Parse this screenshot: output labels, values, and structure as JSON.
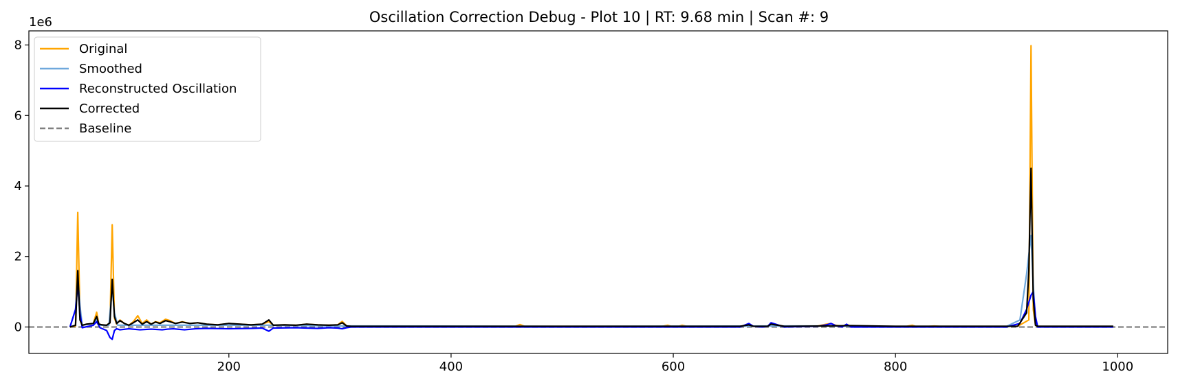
{
  "chart_data": {
    "type": "line",
    "title": "Oscillation Correction Debug - Plot 10 | RT: 9.68 min | Scan #: 9",
    "xlabel": "",
    "ylabel": "",
    "y_scale_label": "1e6",
    "xlim": [
      20,
      1045
    ],
    "ylim": [
      -0.75,
      8.4
    ],
    "x_ticks": [
      {
        "value": 200,
        "label": "200"
      },
      {
        "value": 400,
        "label": "400"
      },
      {
        "value": 600,
        "label": "600"
      },
      {
        "value": 800,
        "label": "800"
      },
      {
        "value": 1000,
        "label": "1000"
      }
    ],
    "y_ticks": [
      {
        "value": 0,
        "label": "0"
      },
      {
        "value": 2,
        "label": "2"
      },
      {
        "value": 4,
        "label": "4"
      },
      {
        "value": 6,
        "label": "6"
      },
      {
        "value": 8,
        "label": "8"
      }
    ],
    "grid": false,
    "legend_position": "top-left",
    "series": [
      {
        "name": "Original",
        "color": "#FFA500",
        "style": "solid",
        "x": [
          57,
          62,
          64,
          66,
          68,
          72,
          78,
          81,
          83,
          86,
          90,
          93,
          95,
          97,
          99,
          102,
          106,
          110,
          114,
          118,
          122,
          126,
          130,
          134,
          138,
          143,
          147,
          152,
          158,
          165,
          172,
          180,
          190,
          200,
          210,
          220,
          230,
          236,
          240,
          250,
          260,
          270,
          280,
          290,
          298,
          302,
          306,
          310,
          330,
          360,
          400,
          440,
          458,
          462,
          466,
          500,
          540,
          560,
          590,
          595,
          598,
          605,
          608,
          612,
          630,
          660,
          668,
          672,
          680,
          685,
          688,
          700,
          730,
          738,
          742,
          746,
          752,
          756,
          760,
          780,
          810,
          815,
          818,
          822,
          830,
          835,
          840,
          870,
          900,
          910,
          920,
          922,
          924,
          926,
          928,
          932,
          950,
          980,
          996
        ],
        "y": [
          0,
          0.03,
          3.25,
          0.3,
          0.05,
          0.08,
          0.1,
          0.42,
          0.08,
          0.06,
          0.05,
          0.12,
          2.9,
          0.25,
          0.08,
          0.2,
          0.1,
          0.05,
          0.15,
          0.32,
          0.1,
          0.2,
          0.08,
          0.15,
          0.12,
          0.22,
          0.18,
          0.1,
          0.15,
          0.1,
          0.12,
          0.08,
          0.06,
          0.1,
          0.08,
          0.06,
          0.08,
          0.15,
          0.05,
          0.06,
          0.05,
          0.08,
          0.06,
          0.05,
          0.06,
          0.16,
          0.03,
          0.02,
          0.02,
          0.02,
          0.02,
          0.02,
          0.02,
          0.07,
          0.02,
          0.02,
          0.02,
          0.02,
          0.02,
          0.05,
          0.02,
          0.02,
          0.05,
          0.02,
          0.02,
          0.02,
          0.05,
          0.02,
          0.02,
          0.03,
          0.08,
          0.02,
          0.03,
          0.08,
          0.1,
          0.05,
          0.02,
          0.07,
          0.02,
          0.02,
          0.02,
          0.05,
          0.02,
          0.02,
          0.02,
          0.03,
          0.02,
          0.02,
          0.02,
          0.02,
          0.2,
          7.98,
          0.5,
          0.05,
          0.02,
          0.02,
          0.02,
          0.02,
          0.02
        ]
      },
      {
        "name": "Smoothed",
        "color": "#6FA8DC",
        "style": "solid",
        "x": [
          57,
          62,
          64,
          66,
          68,
          78,
          81,
          84,
          92,
          95,
          97,
          100,
          150,
          236,
          300,
          500,
          740,
          760,
          900,
          912,
          918,
          922,
          924,
          926,
          928,
          930,
          932,
          960,
          996
        ],
        "y": [
          0,
          0.5,
          1.4,
          0.6,
          0.05,
          0.1,
          0.22,
          0.05,
          0.05,
          1.1,
          0.4,
          0.05,
          0.05,
          0.05,
          0.03,
          0.02,
          0.03,
          0.02,
          0.02,
          0.2,
          1.5,
          2.6,
          1.2,
          0.2,
          0.02,
          0.02,
          0.02,
          0.02,
          0.02
        ]
      },
      {
        "name": "Reconstructed Oscillation",
        "color": "#0000FF",
        "style": "solid",
        "x": [
          57,
          62,
          64,
          66,
          68,
          78,
          81,
          84,
          90,
          93,
          95,
          97,
          99,
          102,
          110,
          120,
          130,
          140,
          145,
          150,
          160,
          170,
          180,
          200,
          220,
          230,
          236,
          240,
          260,
          280,
          290,
          298,
          302,
          306,
          310,
          400,
          600,
          660,
          668,
          672,
          680,
          685,
          688,
          700,
          730,
          738,
          742,
          746,
          752,
          756,
          760,
          780,
          900,
          912,
          918,
          922,
          924,
          926,
          928,
          930,
          932,
          996
        ],
        "y": [
          0,
          0.5,
          1.2,
          0.4,
          -0.02,
          0.05,
          0.15,
          -0.02,
          -0.1,
          -0.3,
          -0.35,
          -0.1,
          -0.05,
          -0.08,
          -0.05,
          -0.08,
          -0.06,
          -0.08,
          -0.06,
          -0.05,
          -0.08,
          -0.05,
          -0.04,
          -0.05,
          -0.04,
          -0.03,
          -0.12,
          -0.03,
          -0.02,
          -0.04,
          -0.02,
          -0.03,
          -0.05,
          -0.02,
          0,
          0,
          0,
          0,
          0.1,
          0.02,
          0,
          0.02,
          0.12,
          0,
          0.02,
          0.06,
          0.1,
          0.04,
          0,
          0.08,
          0,
          0,
          0,
          0.1,
          0.5,
          0.9,
          1.0,
          0.3,
          0,
          0,
          0,
          0
        ]
      },
      {
        "name": "Corrected",
        "color": "#000000",
        "style": "solid",
        "x": [
          57,
          62,
          64,
          66,
          68,
          72,
          78,
          81,
          83,
          86,
          90,
          93,
          95,
          97,
          99,
          102,
          106,
          110,
          114,
          118,
          122,
          126,
          130,
          134,
          138,
          143,
          147,
          152,
          158,
          165,
          172,
          180,
          190,
          200,
          210,
          220,
          230,
          236,
          240,
          250,
          260,
          270,
          280,
          290,
          298,
          302,
          306,
          310,
          330,
          360,
          400,
          440,
          500,
          540,
          600,
          660,
          668,
          672,
          680,
          685,
          688,
          700,
          740,
          760,
          800,
          900,
          910,
          918,
          920,
          922,
          924,
          926,
          928,
          932,
          950,
          980,
          996
        ],
        "y": [
          0,
          0.05,
          1.6,
          0.2,
          0.05,
          0.08,
          0.1,
          0.3,
          0.08,
          0.06,
          0.05,
          0.12,
          1.35,
          0.3,
          0.1,
          0.18,
          0.1,
          0.05,
          0.12,
          0.2,
          0.08,
          0.15,
          0.08,
          0.14,
          0.1,
          0.18,
          0.15,
          0.1,
          0.14,
          0.1,
          0.12,
          0.08,
          0.06,
          0.1,
          0.08,
          0.06,
          0.08,
          0.2,
          0.05,
          0.06,
          0.05,
          0.08,
          0.06,
          0.05,
          0.06,
          0.12,
          0.03,
          0.02,
          0.02,
          0.02,
          0.02,
          0.02,
          0.02,
          0.02,
          0.02,
          0.02,
          0.06,
          0.02,
          0.02,
          0.02,
          0.08,
          0.02,
          0.03,
          0.04,
          0.02,
          0.02,
          0.02,
          0.4,
          1.6,
          4.5,
          0.8,
          0.05,
          0.02,
          0.02,
          0.02,
          0.02,
          0.02
        ]
      },
      {
        "name": "Baseline",
        "color": "#808080",
        "style": "dashed",
        "x": [
          20,
          1045
        ],
        "y": [
          0,
          0
        ]
      }
    ]
  }
}
